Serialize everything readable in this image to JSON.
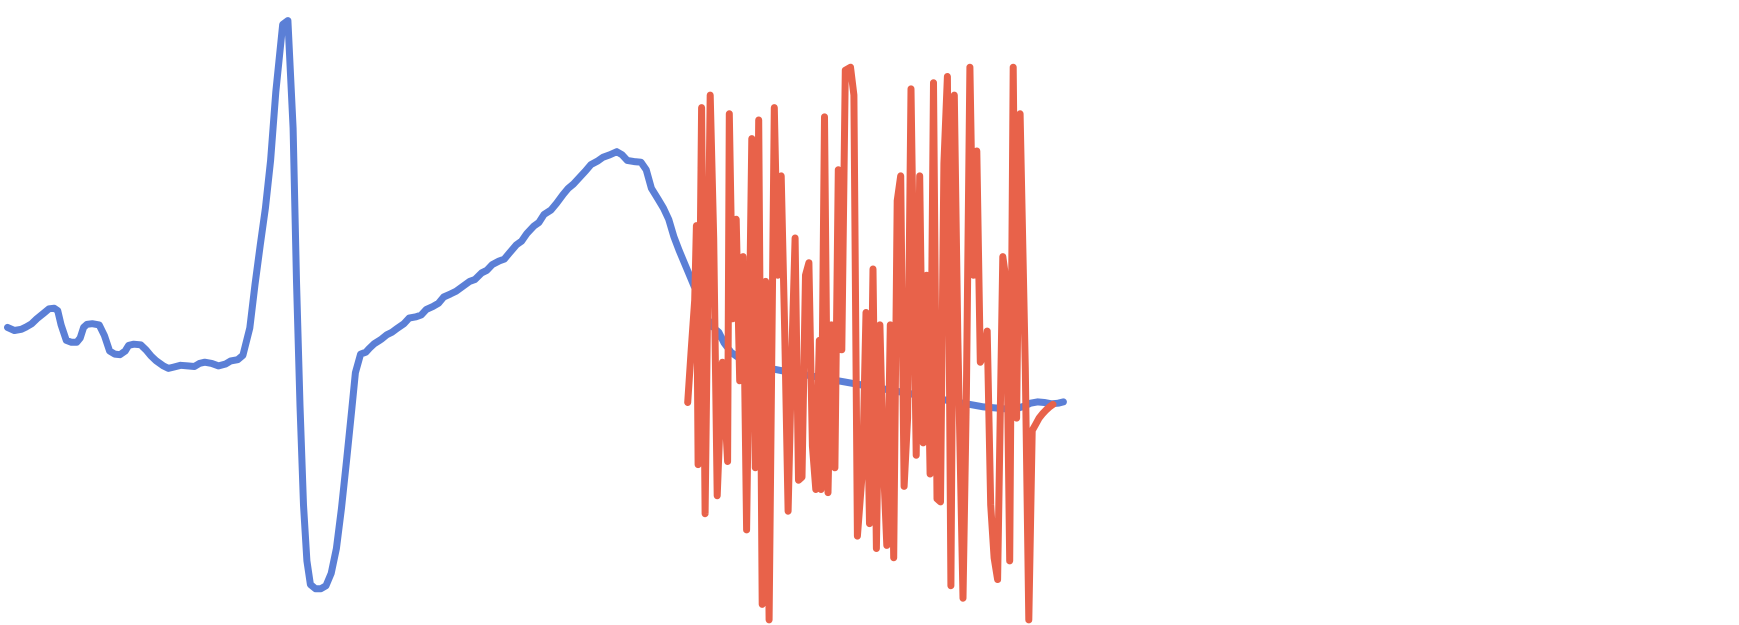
{
  "chart_data": {
    "type": "line",
    "title": "",
    "xlabel": "",
    "ylabel": "",
    "grid": false,
    "legend": "none",
    "xlim": [
      0,
      1
    ],
    "ylim": [
      0,
      1
    ],
    "series": [
      {
        "color": "#5b7fd6",
        "points": [
          [
            0.002,
            0.524
          ],
          [
            0.006,
            0.529
          ],
          [
            0.01,
            0.527
          ],
          [
            0.013,
            0.523
          ],
          [
            0.016,
            0.518
          ],
          [
            0.019,
            0.51
          ],
          [
            0.023,
            0.501
          ],
          [
            0.026,
            0.494
          ],
          [
            0.029,
            0.493
          ],
          [
            0.031,
            0.497
          ],
          [
            0.033,
            0.52
          ],
          [
            0.036,
            0.545
          ],
          [
            0.039,
            0.548
          ],
          [
            0.042,
            0.548
          ],
          [
            0.044,
            0.541
          ],
          [
            0.046,
            0.524
          ],
          [
            0.048,
            0.519
          ],
          [
            0.051,
            0.518
          ],
          [
            0.055,
            0.52
          ],
          [
            0.058,
            0.537
          ],
          [
            0.061,
            0.562
          ],
          [
            0.064,
            0.567
          ],
          [
            0.067,
            0.568
          ],
          [
            0.07,
            0.562
          ],
          [
            0.072,
            0.553
          ],
          [
            0.075,
            0.551
          ],
          [
            0.079,
            0.552
          ],
          [
            0.082,
            0.56
          ],
          [
            0.085,
            0.57
          ],
          [
            0.088,
            0.578
          ],
          [
            0.092,
            0.586
          ],
          [
            0.095,
            0.59
          ],
          [
            0.098,
            0.588
          ],
          [
            0.102,
            0.585
          ],
          [
            0.106,
            0.586
          ],
          [
            0.11,
            0.587
          ],
          [
            0.113,
            0.582
          ],
          [
            0.116,
            0.58
          ],
          [
            0.12,
            0.582
          ],
          [
            0.124,
            0.586
          ],
          [
            0.128,
            0.583
          ],
          [
            0.131,
            0.578
          ],
          [
            0.135,
            0.576
          ],
          [
            0.138,
            0.569
          ],
          [
            0.142,
            0.525
          ],
          [
            0.145,
            0.455
          ],
          [
            0.148,
            0.392
          ],
          [
            0.151,
            0.332
          ],
          [
            0.154,
            0.255
          ],
          [
            0.157,
            0.145
          ],
          [
            0.161,
            0.036
          ],
          [
            0.164,
            0.03
          ],
          [
            0.167,
            0.203
          ],
          [
            0.169,
            0.45
          ],
          [
            0.171,
            0.65
          ],
          [
            0.173,
            0.81
          ],
          [
            0.175,
            0.9
          ],
          [
            0.177,
            0.938
          ],
          [
            0.18,
            0.945
          ],
          [
            0.183,
            0.945
          ],
          [
            0.186,
            0.94
          ],
          [
            0.189,
            0.92
          ],
          [
            0.192,
            0.88
          ],
          [
            0.195,
            0.815
          ],
          [
            0.198,
            0.736
          ],
          [
            0.201,
            0.654
          ],
          [
            0.203,
            0.597
          ],
          [
            0.206,
            0.567
          ],
          [
            0.209,
            0.564
          ],
          [
            0.211,
            0.558
          ],
          [
            0.214,
            0.55
          ],
          [
            0.218,
            0.543
          ],
          [
            0.221,
            0.536
          ],
          [
            0.224,
            0.532
          ],
          [
            0.227,
            0.526
          ],
          [
            0.231,
            0.518
          ],
          [
            0.234,
            0.509
          ],
          [
            0.238,
            0.507
          ],
          [
            0.241,
            0.504
          ],
          [
            0.244,
            0.495
          ],
          [
            0.248,
            0.49
          ],
          [
            0.251,
            0.485
          ],
          [
            0.254,
            0.475
          ],
          [
            0.258,
            0.47
          ],
          [
            0.261,
            0.466
          ],
          [
            0.265,
            0.458
          ],
          [
            0.269,
            0.45
          ],
          [
            0.272,
            0.447
          ],
          [
            0.276,
            0.436
          ],
          [
            0.279,
            0.432
          ],
          [
            0.282,
            0.423
          ],
          [
            0.286,
            0.417
          ],
          [
            0.289,
            0.414
          ],
          [
            0.292,
            0.404
          ],
          [
            0.296,
            0.391
          ],
          [
            0.299,
            0.385
          ],
          [
            0.302,
            0.373
          ],
          [
            0.306,
            0.361
          ],
          [
            0.309,
            0.355
          ],
          [
            0.312,
            0.342
          ],
          [
            0.316,
            0.335
          ],
          [
            0.319,
            0.325
          ],
          [
            0.323,
            0.31
          ],
          [
            0.326,
            0.3
          ],
          [
            0.329,
            0.293
          ],
          [
            0.333,
            0.281
          ],
          [
            0.336,
            0.272
          ],
          [
            0.339,
            0.262
          ],
          [
            0.343,
            0.256
          ],
          [
            0.346,
            0.25
          ],
          [
            0.35,
            0.246
          ],
          [
            0.354,
            0.241
          ],
          [
            0.357,
            0.246
          ],
          [
            0.36,
            0.255
          ],
          [
            0.364,
            0.257
          ],
          [
            0.368,
            0.258
          ],
          [
            0.371,
            0.27
          ],
          [
            0.374,
            0.3
          ],
          [
            0.378,
            0.318
          ],
          [
            0.381,
            0.332
          ],
          [
            0.384,
            0.35
          ],
          [
            0.387,
            0.378
          ],
          [
            0.39,
            0.4
          ],
          [
            0.393,
            0.42
          ],
          [
            0.396,
            0.44
          ],
          [
            0.399,
            0.46
          ],
          [
            0.402,
            0.48
          ],
          [
            0.405,
            0.505
          ],
          [
            0.409,
            0.522
          ],
          [
            0.413,
            0.532
          ],
          [
            0.416,
            0.549
          ],
          [
            0.42,
            0.564
          ],
          [
            0.423,
            0.57
          ],
          [
            0.427,
            0.578
          ],
          [
            0.431,
            0.582
          ],
          [
            0.435,
            0.585
          ],
          [
            0.438,
            0.588
          ],
          [
            0.442,
            0.59
          ],
          [
            0.446,
            0.592
          ],
          [
            0.45,
            0.594
          ],
          [
            0.454,
            0.596
          ],
          [
            0.458,
            0.598
          ],
          [
            0.462,
            0.6
          ],
          [
            0.466,
            0.602
          ],
          [
            0.47,
            0.604
          ],
          [
            0.474,
            0.606
          ],
          [
            0.478,
            0.608
          ],
          [
            0.482,
            0.61
          ],
          [
            0.486,
            0.612
          ],
          [
            0.49,
            0.614
          ],
          [
            0.494,
            0.616
          ],
          [
            0.498,
            0.618
          ],
          [
            0.502,
            0.62
          ],
          [
            0.506,
            0.622
          ],
          [
            0.51,
            0.624
          ],
          [
            0.514,
            0.626
          ],
          [
            0.518,
            0.628
          ],
          [
            0.522,
            0.63
          ],
          [
            0.526,
            0.632
          ],
          [
            0.53,
            0.634
          ],
          [
            0.534,
            0.636
          ],
          [
            0.538,
            0.638
          ],
          [
            0.542,
            0.64
          ],
          [
            0.546,
            0.642
          ],
          [
            0.55,
            0.644
          ],
          [
            0.554,
            0.646
          ],
          [
            0.558,
            0.648
          ],
          [
            0.562,
            0.65
          ],
          [
            0.566,
            0.652
          ],
          [
            0.57,
            0.653
          ],
          [
            0.574,
            0.654
          ],
          [
            0.578,
            0.655
          ],
          [
            0.582,
            0.656
          ],
          [
            0.586,
            0.654
          ],
          [
            0.59,
            0.65
          ],
          [
            0.593,
            0.646
          ],
          [
            0.597,
            0.644
          ],
          [
            0.601,
            0.645
          ],
          [
            0.605,
            0.647
          ],
          [
            0.609,
            0.646
          ],
          [
            0.612,
            0.644
          ]
        ]
      },
      {
        "color": "#e8624a",
        "points": [
          [
            0.395,
            0.645
          ],
          [
            0.397,
            0.56
          ],
          [
            0.399,
            0.48
          ],
          [
            0.4,
            0.36
          ],
          [
            0.401,
            0.745
          ],
          [
            0.403,
            0.17
          ],
          [
            0.405,
            0.824
          ],
          [
            0.408,
            0.15
          ],
          [
            0.41,
            0.38
          ],
          [
            0.412,
            0.795
          ],
          [
            0.415,
            0.58
          ],
          [
            0.418,
            0.74
          ],
          [
            0.419,
            0.18
          ],
          [
            0.421,
            0.51
          ],
          [
            0.423,
            0.35
          ],
          [
            0.425,
            0.61
          ],
          [
            0.427,
            0.41
          ],
          [
            0.429,
            0.85
          ],
          [
            0.432,
            0.22
          ],
          [
            0.434,
            0.75
          ],
          [
            0.436,
            0.19
          ],
          [
            0.438,
            0.97
          ],
          [
            0.44,
            0.45
          ],
          [
            0.442,
            0.995
          ],
          [
            0.445,
            0.17
          ],
          [
            0.447,
            0.44
          ],
          [
            0.449,
            0.28
          ],
          [
            0.451,
            0.53
          ],
          [
            0.453,
            0.82
          ],
          [
            0.455,
            0.58
          ],
          [
            0.457,
            0.38
          ],
          [
            0.459,
            0.77
          ],
          [
            0.461,
            0.765
          ],
          [
            0.463,
            0.44
          ],
          [
            0.465,
            0.42
          ],
          [
            0.467,
            0.715
          ],
          [
            0.469,
            0.785
          ],
          [
            0.471,
            0.545
          ],
          [
            0.472,
            0.785
          ],
          [
            0.474,
            0.185
          ],
          [
            0.476,
            0.79
          ],
          [
            0.478,
            0.52
          ],
          [
            0.48,
            0.75
          ],
          [
            0.482,
            0.27
          ],
          [
            0.484,
            0.56
          ],
          [
            0.486,
            0.11
          ],
          [
            0.489,
            0.105
          ],
          [
            0.491,
            0.15
          ],
          [
            0.493,
            0.86
          ],
          [
            0.496,
            0.75
          ],
          [
            0.498,
            0.5
          ],
          [
            0.5,
            0.84
          ],
          [
            0.502,
            0.43
          ],
          [
            0.504,
            0.88
          ],
          [
            0.506,
            0.52
          ],
          [
            0.508,
            0.74
          ],
          [
            0.51,
            0.875
          ],
          [
            0.512,
            0.52
          ],
          [
            0.514,
            0.895
          ],
          [
            0.516,
            0.32
          ],
          [
            0.518,
            0.28
          ],
          [
            0.52,
            0.78
          ],
          [
            0.522,
            0.67
          ],
          [
            0.524,
            0.14
          ],
          [
            0.527,
            0.73
          ],
          [
            0.529,
            0.28
          ],
          [
            0.531,
            0.71
          ],
          [
            0.533,
            0.44
          ],
          [
            0.535,
            0.76
          ],
          [
            0.537,
            0.13
          ],
          [
            0.539,
            0.8
          ],
          [
            0.541,
            0.805
          ],
          [
            0.543,
            0.26
          ],
          [
            0.545,
            0.12
          ],
          [
            0.547,
            0.94
          ],
          [
            0.549,
            0.15
          ],
          [
            0.551,
            0.54
          ],
          [
            0.554,
            0.96
          ],
          [
            0.556,
            0.63
          ],
          [
            0.558,
            0.105
          ],
          [
            0.56,
            0.44
          ],
          [
            0.562,
            0.24
          ],
          [
            0.564,
            0.58
          ],
          [
            0.566,
            0.57
          ],
          [
            0.568,
            0.53
          ],
          [
            0.57,
            0.81
          ],
          [
            0.572,
            0.895
          ],
          [
            0.574,
            0.93
          ],
          [
            0.577,
            0.41
          ],
          [
            0.579,
            0.45
          ],
          [
            0.581,
            0.9
          ],
          [
            0.583,
            0.105
          ],
          [
            0.585,
            0.67
          ],
          [
            0.587,
            0.18
          ],
          [
            0.59,
            0.59
          ],
          [
            0.592,
            0.995
          ],
          [
            0.594,
            0.69
          ],
          [
            0.596,
            0.68
          ],
          [
            0.598,
            0.67
          ],
          [
            0.6,
            0.663
          ],
          [
            0.602,
            0.657
          ],
          [
            0.604,
            0.652
          ],
          [
            0.606,
            0.648
          ]
        ]
      }
    ]
  }
}
